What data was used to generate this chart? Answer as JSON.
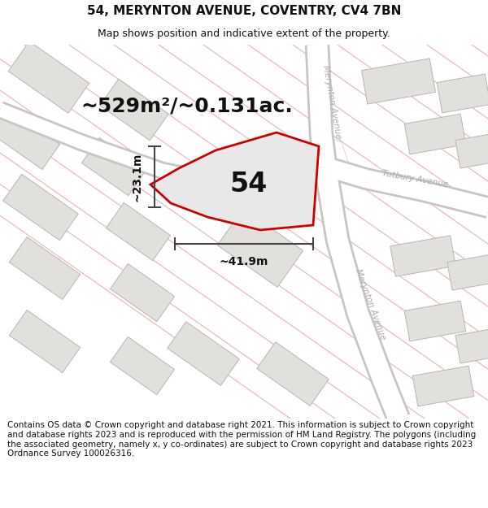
{
  "title_line1": "54, MERYNTON AVENUE, COVENTRY, CV4 7BN",
  "title_line2": "Map shows position and indicative extent of the property.",
  "area_text": "~529m²/~0.131ac.",
  "dim_width": "~41.9m",
  "dim_height": "~23.1m",
  "label_54": "54",
  "footer_text": "Contains OS data © Crown copyright and database right 2021. This information is subject to Crown copyright and database rights 2023 and is reproduced with the permission of HM Land Registry. The polygons (including the associated geometry, namely x, y co-ordinates) are subject to Crown copyright and database rights 2023 Ordnance Survey 100026316.",
  "map_bg": "#f2f0ed",
  "road_color": "#ffffff",
  "road_stroke": "#c8c6c3",
  "building_fill": "#e2e0dd",
  "building_stroke": "#b8b6b3",
  "road_name_color": "#aaaaaa",
  "pink_line_color": "#e8a0a0",
  "red_poly_color": "#cc0000",
  "red_poly_fill": "#e8e8e8",
  "dim_line_color": "#444444",
  "title_fontsize": 11,
  "subtitle_fontsize": 9,
  "footer_fontsize": 7.5,
  "area_fontsize": 18,
  "label_fontsize": 24,
  "dim_fontsize": 10
}
